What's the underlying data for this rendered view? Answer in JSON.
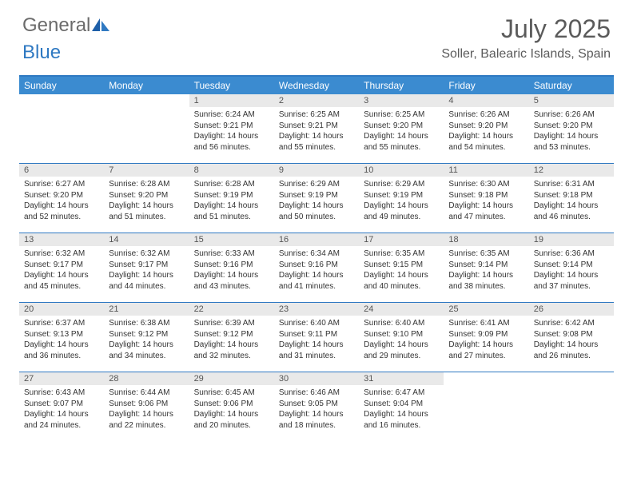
{
  "brand": {
    "general": "General",
    "blue": "Blue"
  },
  "title": "July 2025",
  "location": "Soller, Balearic Islands, Spain",
  "colors": {
    "header_bg": "#3b8bd0",
    "rule": "#2f79c2",
    "daynum_bg": "#e9e9e9",
    "text": "#333333",
    "title_text": "#5b5b5b"
  },
  "typography": {
    "title_fontsize_pt": 24,
    "location_fontsize_pt": 12,
    "dayhead_fontsize_pt": 9,
    "daynum_fontsize_pt": 8,
    "body_fontsize_pt": 7
  },
  "day_names": [
    "Sunday",
    "Monday",
    "Tuesday",
    "Wednesday",
    "Thursday",
    "Friday",
    "Saturday"
  ],
  "weeks": [
    [
      null,
      null,
      {
        "n": "1",
        "sr": "Sunrise: 6:24 AM",
        "ss": "Sunset: 9:21 PM",
        "d1": "Daylight: 14 hours",
        "d2": "and 56 minutes."
      },
      {
        "n": "2",
        "sr": "Sunrise: 6:25 AM",
        "ss": "Sunset: 9:21 PM",
        "d1": "Daylight: 14 hours",
        "d2": "and 55 minutes."
      },
      {
        "n": "3",
        "sr": "Sunrise: 6:25 AM",
        "ss": "Sunset: 9:20 PM",
        "d1": "Daylight: 14 hours",
        "d2": "and 55 minutes."
      },
      {
        "n": "4",
        "sr": "Sunrise: 6:26 AM",
        "ss": "Sunset: 9:20 PM",
        "d1": "Daylight: 14 hours",
        "d2": "and 54 minutes."
      },
      {
        "n": "5",
        "sr": "Sunrise: 6:26 AM",
        "ss": "Sunset: 9:20 PM",
        "d1": "Daylight: 14 hours",
        "d2": "and 53 minutes."
      }
    ],
    [
      {
        "n": "6",
        "sr": "Sunrise: 6:27 AM",
        "ss": "Sunset: 9:20 PM",
        "d1": "Daylight: 14 hours",
        "d2": "and 52 minutes."
      },
      {
        "n": "7",
        "sr": "Sunrise: 6:28 AM",
        "ss": "Sunset: 9:20 PM",
        "d1": "Daylight: 14 hours",
        "d2": "and 51 minutes."
      },
      {
        "n": "8",
        "sr": "Sunrise: 6:28 AM",
        "ss": "Sunset: 9:19 PM",
        "d1": "Daylight: 14 hours",
        "d2": "and 51 minutes."
      },
      {
        "n": "9",
        "sr": "Sunrise: 6:29 AM",
        "ss": "Sunset: 9:19 PM",
        "d1": "Daylight: 14 hours",
        "d2": "and 50 minutes."
      },
      {
        "n": "10",
        "sr": "Sunrise: 6:29 AM",
        "ss": "Sunset: 9:19 PM",
        "d1": "Daylight: 14 hours",
        "d2": "and 49 minutes."
      },
      {
        "n": "11",
        "sr": "Sunrise: 6:30 AM",
        "ss": "Sunset: 9:18 PM",
        "d1": "Daylight: 14 hours",
        "d2": "and 47 minutes."
      },
      {
        "n": "12",
        "sr": "Sunrise: 6:31 AM",
        "ss": "Sunset: 9:18 PM",
        "d1": "Daylight: 14 hours",
        "d2": "and 46 minutes."
      }
    ],
    [
      {
        "n": "13",
        "sr": "Sunrise: 6:32 AM",
        "ss": "Sunset: 9:17 PM",
        "d1": "Daylight: 14 hours",
        "d2": "and 45 minutes."
      },
      {
        "n": "14",
        "sr": "Sunrise: 6:32 AM",
        "ss": "Sunset: 9:17 PM",
        "d1": "Daylight: 14 hours",
        "d2": "and 44 minutes."
      },
      {
        "n": "15",
        "sr": "Sunrise: 6:33 AM",
        "ss": "Sunset: 9:16 PM",
        "d1": "Daylight: 14 hours",
        "d2": "and 43 minutes."
      },
      {
        "n": "16",
        "sr": "Sunrise: 6:34 AM",
        "ss": "Sunset: 9:16 PM",
        "d1": "Daylight: 14 hours",
        "d2": "and 41 minutes."
      },
      {
        "n": "17",
        "sr": "Sunrise: 6:35 AM",
        "ss": "Sunset: 9:15 PM",
        "d1": "Daylight: 14 hours",
        "d2": "and 40 minutes."
      },
      {
        "n": "18",
        "sr": "Sunrise: 6:35 AM",
        "ss": "Sunset: 9:14 PM",
        "d1": "Daylight: 14 hours",
        "d2": "and 38 minutes."
      },
      {
        "n": "19",
        "sr": "Sunrise: 6:36 AM",
        "ss": "Sunset: 9:14 PM",
        "d1": "Daylight: 14 hours",
        "d2": "and 37 minutes."
      }
    ],
    [
      {
        "n": "20",
        "sr": "Sunrise: 6:37 AM",
        "ss": "Sunset: 9:13 PM",
        "d1": "Daylight: 14 hours",
        "d2": "and 36 minutes."
      },
      {
        "n": "21",
        "sr": "Sunrise: 6:38 AM",
        "ss": "Sunset: 9:12 PM",
        "d1": "Daylight: 14 hours",
        "d2": "and 34 minutes."
      },
      {
        "n": "22",
        "sr": "Sunrise: 6:39 AM",
        "ss": "Sunset: 9:12 PM",
        "d1": "Daylight: 14 hours",
        "d2": "and 32 minutes."
      },
      {
        "n": "23",
        "sr": "Sunrise: 6:40 AM",
        "ss": "Sunset: 9:11 PM",
        "d1": "Daylight: 14 hours",
        "d2": "and 31 minutes."
      },
      {
        "n": "24",
        "sr": "Sunrise: 6:40 AM",
        "ss": "Sunset: 9:10 PM",
        "d1": "Daylight: 14 hours",
        "d2": "and 29 minutes."
      },
      {
        "n": "25",
        "sr": "Sunrise: 6:41 AM",
        "ss": "Sunset: 9:09 PM",
        "d1": "Daylight: 14 hours",
        "d2": "and 27 minutes."
      },
      {
        "n": "26",
        "sr": "Sunrise: 6:42 AM",
        "ss": "Sunset: 9:08 PM",
        "d1": "Daylight: 14 hours",
        "d2": "and 26 minutes."
      }
    ],
    [
      {
        "n": "27",
        "sr": "Sunrise: 6:43 AM",
        "ss": "Sunset: 9:07 PM",
        "d1": "Daylight: 14 hours",
        "d2": "and 24 minutes."
      },
      {
        "n": "28",
        "sr": "Sunrise: 6:44 AM",
        "ss": "Sunset: 9:06 PM",
        "d1": "Daylight: 14 hours",
        "d2": "and 22 minutes."
      },
      {
        "n": "29",
        "sr": "Sunrise: 6:45 AM",
        "ss": "Sunset: 9:06 PM",
        "d1": "Daylight: 14 hours",
        "d2": "and 20 minutes."
      },
      {
        "n": "30",
        "sr": "Sunrise: 6:46 AM",
        "ss": "Sunset: 9:05 PM",
        "d1": "Daylight: 14 hours",
        "d2": "and 18 minutes."
      },
      {
        "n": "31",
        "sr": "Sunrise: 6:47 AM",
        "ss": "Sunset: 9:04 PM",
        "d1": "Daylight: 14 hours",
        "d2": "and 16 minutes."
      },
      null,
      null
    ]
  ]
}
